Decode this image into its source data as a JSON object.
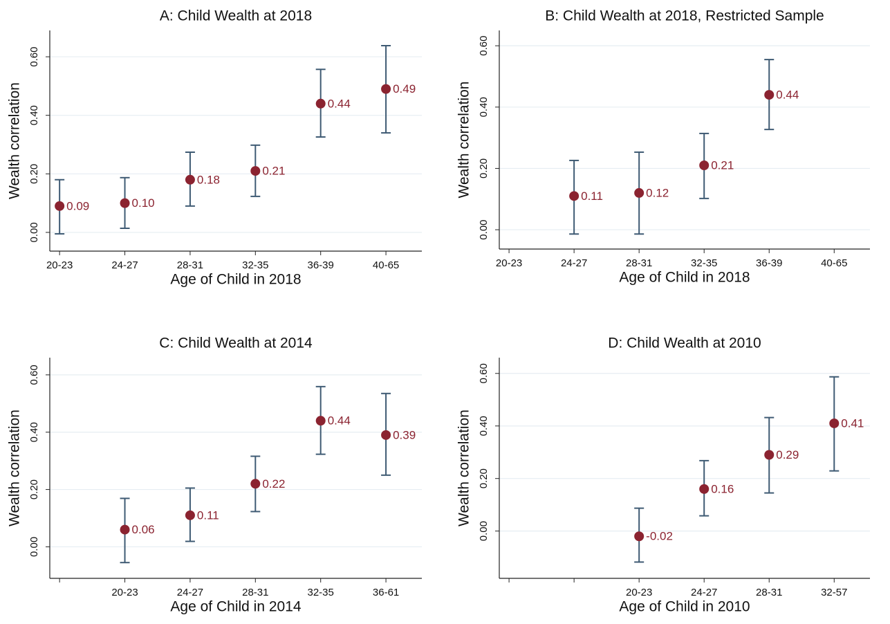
{
  "chart_data": [
    {
      "type": "errorbar",
      "title": "A: Child Wealth at 2018",
      "x_label": "Age of Child in 2018",
      "y_label": "Wealth correlation",
      "categories": [
        "20-23",
        "24-27",
        "28-31",
        "32-35",
        "36-39",
        "40-65"
      ],
      "values": [
        0.09,
        0.1,
        0.18,
        0.21,
        0.44,
        0.49
      ],
      "value_labels": [
        "0.09",
        "0.10",
        "0.18",
        "0.21",
        "0.44",
        "0.49"
      ],
      "lower": [
        -0.005,
        0.014,
        0.09,
        0.123,
        0.326,
        0.34
      ],
      "upper": [
        0.18,
        0.187,
        0.274,
        0.298,
        0.557,
        0.638
      ],
      "color": "#8b2330",
      "bar_color": "#3e5a73",
      "ylim": [
        -0.064,
        0.69
      ],
      "yticks": [
        {
          "value": 0,
          "label": "0.00"
        },
        {
          "value": 0.2,
          "label": "0.20"
        },
        {
          "value": 0.4,
          "label": "0.40"
        },
        {
          "value": 0.6,
          "label": "0.60"
        }
      ],
      "grid": true
    },
    {
      "type": "errorbar",
      "title": "B: Child Wealth at 2018, Restricted Sample",
      "x_label": "Age of Child in 2018",
      "y_label": "Wealth correlation",
      "categories": [
        "20-23",
        "24-27",
        "28-31",
        "32-35",
        "36-39",
        "40-65"
      ],
      "values": [
        null,
        0.11,
        0.12,
        0.21,
        0.44,
        null
      ],
      "value_labels": [
        null,
        "0.11",
        "0.12",
        "0.21",
        "0.44",
        null
      ],
      "lower": [
        null,
        -0.014,
        -0.014,
        0.102,
        0.327,
        null
      ],
      "upper": [
        null,
        0.226,
        0.253,
        0.314,
        0.555,
        null
      ],
      "color": "#8b2330",
      "bar_color": "#3e5a73",
      "ylim": [
        -0.063,
        0.65
      ],
      "yticks": [
        {
          "value": 0,
          "label": "0.00"
        },
        {
          "value": 0.2,
          "label": "0.20"
        },
        {
          "value": 0.4,
          "label": "0.40"
        },
        {
          "value": 0.6,
          "label": "0.60"
        }
      ],
      "grid": true
    },
    {
      "type": "errorbar",
      "title": "C: Child Wealth at 2014",
      "x_label": "Age of Child in 2014",
      "y_label": "Wealth correlation",
      "categories": [
        null,
        "20-23",
        "24-27",
        "28-31",
        "32-35",
        "36-61"
      ],
      "values": [
        null,
        0.06,
        0.11,
        0.22,
        0.44,
        0.39
      ],
      "value_labels": [
        null,
        "0.06",
        "0.11",
        "0.22",
        "0.44",
        "0.39"
      ],
      "lower": [
        null,
        -0.055,
        0.019,
        0.123,
        0.323,
        0.25
      ],
      "upper": [
        null,
        0.169,
        0.205,
        0.316,
        0.559,
        0.535
      ],
      "color": "#8b2330",
      "bar_color": "#3e5a73",
      "ylim": [
        -0.11,
        0.66
      ],
      "yticks": [
        {
          "value": 0,
          "label": "0.00"
        },
        {
          "value": 0.2,
          "label": "0.20"
        },
        {
          "value": 0.4,
          "label": "0.40"
        },
        {
          "value": 0.6,
          "label": "0.60"
        }
      ],
      "grid": true
    },
    {
      "type": "errorbar",
      "title": "D: Child Wealth at 2010",
      "x_label": "Age of Child in 2010",
      "y_label": "Wealth correlation",
      "categories": [
        null,
        null,
        "20-23",
        "24-27",
        "28-31",
        "32-57"
      ],
      "values": [
        null,
        null,
        -0.02,
        0.16,
        0.29,
        0.41
      ],
      "value_labels": [
        null,
        null,
        "-0.02",
        "0.16",
        "0.29",
        "0.41"
      ],
      "lower": [
        null,
        null,
        -0.118,
        0.058,
        0.145,
        0.229
      ],
      "upper": [
        null,
        null,
        0.087,
        0.268,
        0.432,
        0.587
      ],
      "color": "#8b2330",
      "bar_color": "#3e5a73",
      "ylim": [
        -0.18,
        0.66
      ],
      "yticks": [
        {
          "value": 0,
          "label": "0.00"
        },
        {
          "value": 0.2,
          "label": "0.20"
        },
        {
          "value": 0.4,
          "label": "0.40"
        },
        {
          "value": 0.6,
          "label": "0.60"
        }
      ],
      "grid": true
    }
  ]
}
